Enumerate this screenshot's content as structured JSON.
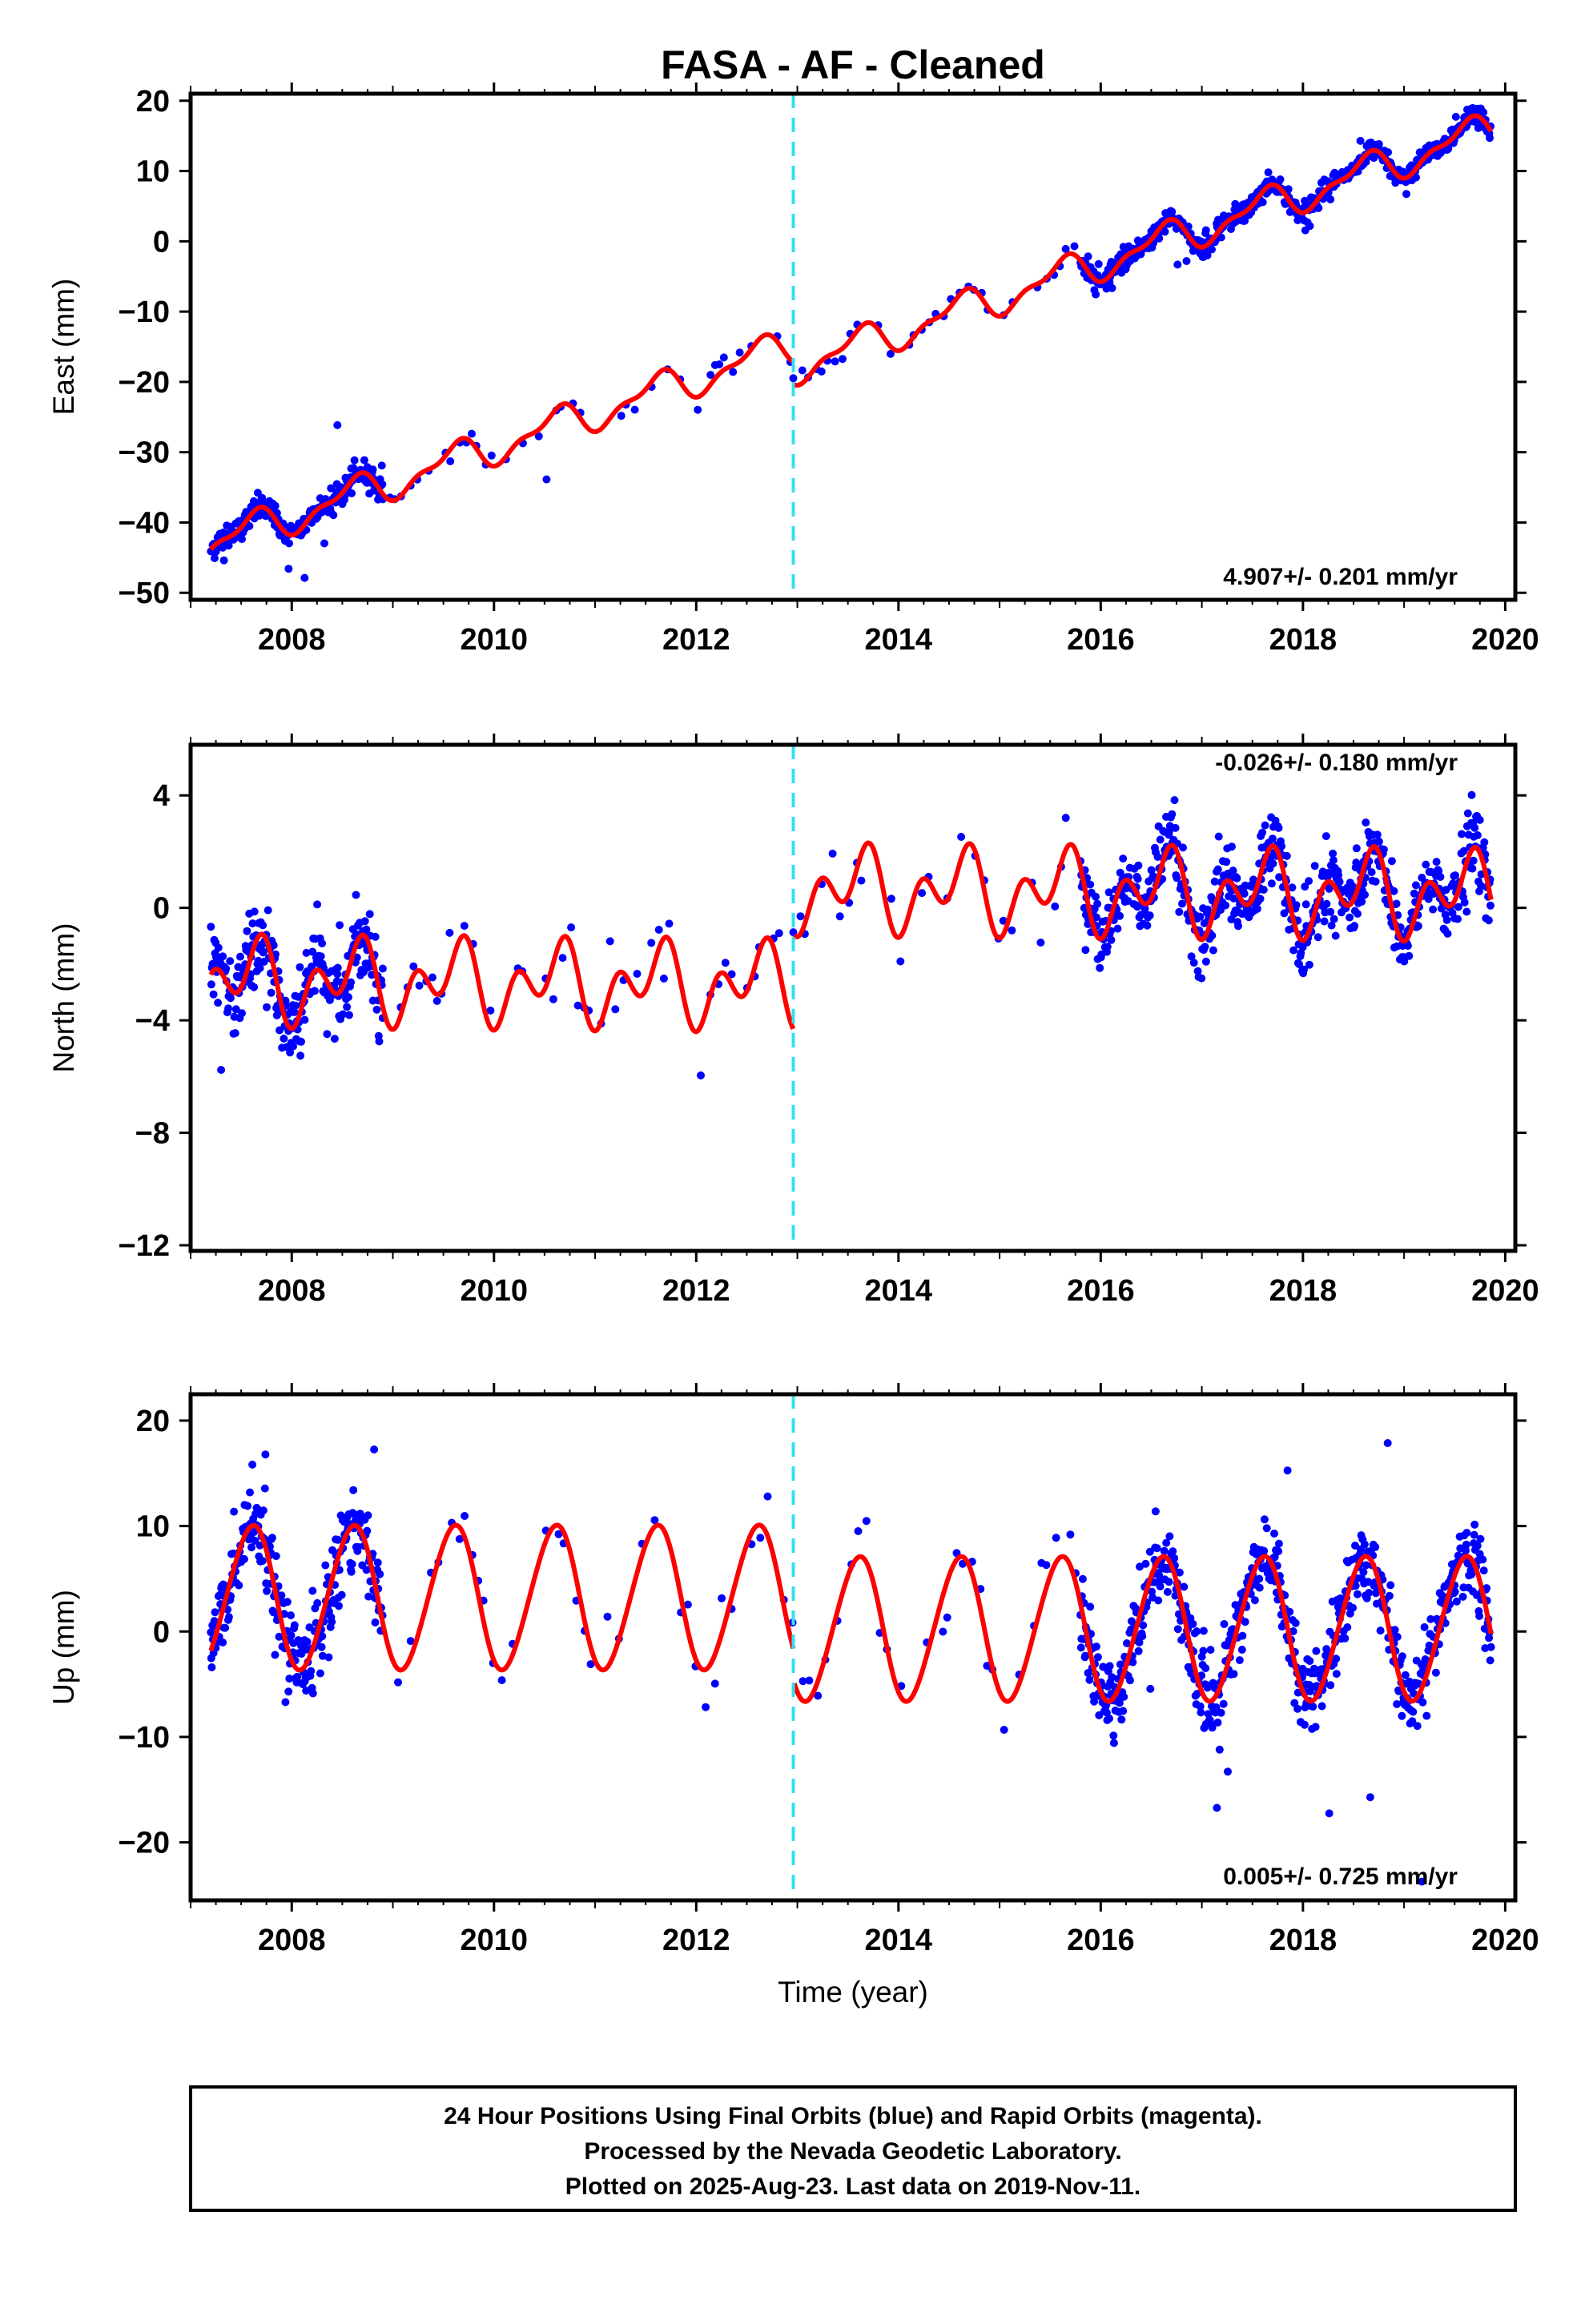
{
  "title": "FASA  - AF - Cleaned",
  "xlabel": "Time (year)",
  "colors": {
    "points": "#0000ff",
    "model": "#ff0000",
    "event_line": "#33e0ee",
    "frame": "#000000"
  },
  "footer": {
    "line1": "24 Hour Positions Using Final Orbits (blue) and Rapid Orbits (magenta).",
    "line2": "Processed by the Nevada Geodetic Laboratory.",
    "line3": "Plotted on 2025-Aug-23. Last data on 2019-Nov-11."
  },
  "chart_data": [
    {
      "type": "scatter",
      "ylabel": "East (mm)",
      "rate_text": "4.907+/- 0.201 mm/yr",
      "xlim": [
        2007.0,
        2020.1
      ],
      "ylim": [
        -51,
        21
      ],
      "xticks": [
        2008,
        2010,
        2012,
        2014,
        2016,
        2018,
        2020
      ],
      "yticks": [
        -50,
        -40,
        -30,
        -20,
        -10,
        0,
        10,
        20
      ],
      "event_line_x": 2012.96,
      "grid": false,
      "model": {
        "linear_rate": 4.907,
        "reference_value": -43,
        "reference_year": 2007.2,
        "annual_amplitude": 2.2,
        "semiannual_amplitude": 1.0,
        "offset_at_event": -3.2
      },
      "series": [
        {
          "segments": [
            {
              "x_range": [
                2007.2,
                2008.9
              ],
              "density": "dense",
              "scatter": 1.6
            },
            {
              "x_range": [
                2008.9,
                2012.96
              ],
              "density": "sparse",
              "scatter": 1.8
            },
            {
              "x_range": [
                2012.96,
                2015.8
              ],
              "density": "sparse",
              "scatter": 1.5
            },
            {
              "x_range": [
                2015.8,
                2019.86
              ],
              "density": "dense",
              "scatter": 1.3
            }
          ]
        }
      ]
    },
    {
      "type": "scatter",
      "ylabel": "North (mm)",
      "rate_text": "-0.026+/- 0.180 mm/yr",
      "xlim": [
        2007.0,
        2020.1
      ],
      "ylim": [
        -12.2,
        5.8
      ],
      "xticks": [
        2008,
        2010,
        2012,
        2014,
        2016,
        2018,
        2020
      ],
      "yticks": [
        -12,
        -8,
        -4,
        0,
        4
      ],
      "event_line_x": 2012.96,
      "grid": false,
      "model": {
        "linear_rate": -0.026,
        "reference_value": -2.6,
        "reference_year": 2007.2,
        "annual_amplitude": 0.9,
        "semiannual_amplitude": 1.0,
        "offset_at_event": 3.4
      },
      "series": [
        {
          "segments": [
            {
              "x_range": [
                2007.2,
                2008.9
              ],
              "density": "dense",
              "scatter": 1.3
            },
            {
              "x_range": [
                2008.9,
                2012.96
              ],
              "density": "sparse",
              "scatter": 1.5
            },
            {
              "x_range": [
                2012.96,
                2015.8
              ],
              "density": "sparse",
              "scatter": 1.2
            },
            {
              "x_range": [
                2015.8,
                2019.86
              ],
              "density": "dense",
              "scatter": 1.2
            }
          ]
        }
      ]
    },
    {
      "type": "scatter",
      "ylabel": "Up (mm)",
      "rate_text": "0.005+/- 0.725 mm/yr",
      "xlim": [
        2007.0,
        2020.1
      ],
      "ylim": [
        -25.5,
        22.5
      ],
      "xticks": [
        2008,
        2010,
        2012,
        2014,
        2016,
        2018,
        2020
      ],
      "yticks": [
        -20,
        -10,
        0,
        10,
        20
      ],
      "event_line_x": 2012.96,
      "grid": false,
      "model": {
        "linear_rate": 0.005,
        "reference_value": 3.2,
        "reference_year": 2007.2,
        "annual_amplitude": 6.8,
        "semiannual_amplitude": 0.5,
        "offset_at_event": -3.0
      },
      "series": [
        {
          "segments": [
            {
              "x_range": [
                2007.2,
                2008.9
              ],
              "density": "dense",
              "scatter": 4.0
            },
            {
              "x_range": [
                2008.9,
                2012.96
              ],
              "density": "sparse",
              "scatter": 3.5
            },
            {
              "x_range": [
                2012.96,
                2015.8
              ],
              "density": "sparse",
              "scatter": 3.0
            },
            {
              "x_range": [
                2015.8,
                2019.86
              ],
              "density": "dense",
              "scatter": 3.6
            }
          ]
        }
      ]
    }
  ]
}
